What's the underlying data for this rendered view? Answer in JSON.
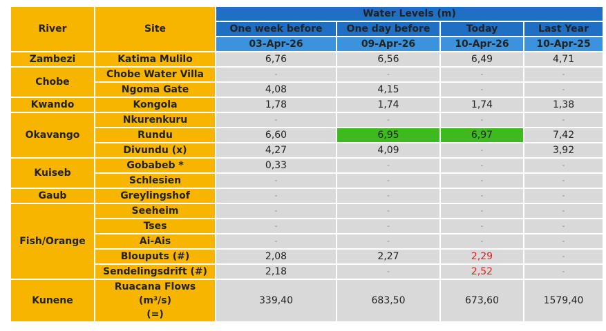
{
  "table": {
    "header": {
      "river": "River",
      "site": "Site",
      "group": "Water Levels (m)",
      "columns": [
        {
          "label": "One week before",
          "date": "03-Apr-26"
        },
        {
          "label": "One day before",
          "date": "09-Apr-26"
        },
        {
          "label": "Today",
          "date": "10-Apr-26"
        },
        {
          "label": "Last Year",
          "date": "10-Apr-25"
        }
      ]
    },
    "groups": [
      {
        "river": "Zambezi",
        "sites": [
          {
            "site": "Katima Mulilo",
            "values": [
              "6,76",
              "6,56",
              "6,49",
              "4,71"
            ]
          }
        ]
      },
      {
        "river": "Chobe",
        "sites": [
          {
            "site": "Chobe Water Villa",
            "values": [
              "-",
              "-",
              "-",
              "-"
            ]
          },
          {
            "site": "Ngoma Gate",
            "values": [
              "4,08",
              "4,15",
              "-",
              "-"
            ]
          }
        ]
      },
      {
        "river": "Kwando",
        "sites": [
          {
            "site": "Kongola",
            "values": [
              "1,78",
              "1,74",
              "1,74",
              "1,38"
            ]
          }
        ]
      },
      {
        "river": "Okavango",
        "sites": [
          {
            "site": "Nkurenkuru",
            "values": [
              "-",
              "-",
              "-",
              "-"
            ]
          },
          {
            "site": "Rundu",
            "values": [
              "6,60",
              "6,95",
              "6,97",
              "7,42"
            ]
          },
          {
            "site": "Divundu (x)",
            "values": [
              "4,27",
              "4,09",
              "-",
              "3,92"
            ]
          }
        ]
      },
      {
        "river": "Kuiseb",
        "sites": [
          {
            "site": "Gobabeb *",
            "values": [
              "0,33",
              "-",
              "-",
              "-"
            ]
          },
          {
            "site": "Schlesien",
            "values": [
              "-",
              "-",
              "-",
              "-"
            ]
          }
        ]
      },
      {
        "river": "Gaub",
        "sites": [
          {
            "site": "Greylingshof",
            "values": [
              "-",
              "-",
              "-",
              "-"
            ]
          }
        ]
      },
      {
        "river": "Fish/Orange",
        "sites": [
          {
            "site": "Seeheim",
            "values": [
              "-",
              "-",
              "-",
              "-"
            ]
          },
          {
            "site": "Tses",
            "values": [
              "-",
              "-",
              "-",
              "-"
            ]
          },
          {
            "site": "Ai-Ais",
            "values": [
              "-",
              "-",
              "-",
              "-"
            ]
          },
          {
            "site": "Blouputs (#)",
            "values": [
              "2,08",
              "2,27",
              "2,29",
              "-"
            ]
          },
          {
            "site": "Sendelingsdrift (#)",
            "values": [
              "2,18",
              "-",
              "2,52",
              "-"
            ]
          }
        ]
      },
      {
        "river": "Kunene",
        "sites": [
          {
            "site": "Ruacana Flows\n(m³/s)\n(=)",
            "values": [
              "339,40",
              "683,50",
              "673,60",
              "1579,40"
            ]
          }
        ]
      }
    ]
  }
}
